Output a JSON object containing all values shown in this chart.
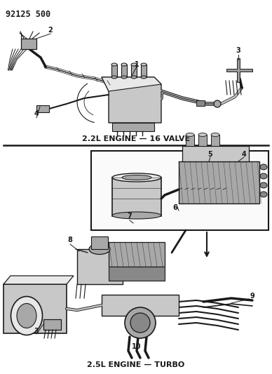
{
  "title_ref": "92125 500",
  "bg_color": "#ffffff",
  "line_color": "#1a1a1a",
  "gray1": "#c8c8c8",
  "gray2": "#a8a8a8",
  "gray3": "#888888",
  "gray4": "#e8e8e8",
  "label1_text": "2.2L ENGINE — 16 VALVE",
  "label2_text": "2.5L ENGINE — TURBO",
  "figsize": [
    3.88,
    5.33
  ],
  "dpi": 100
}
